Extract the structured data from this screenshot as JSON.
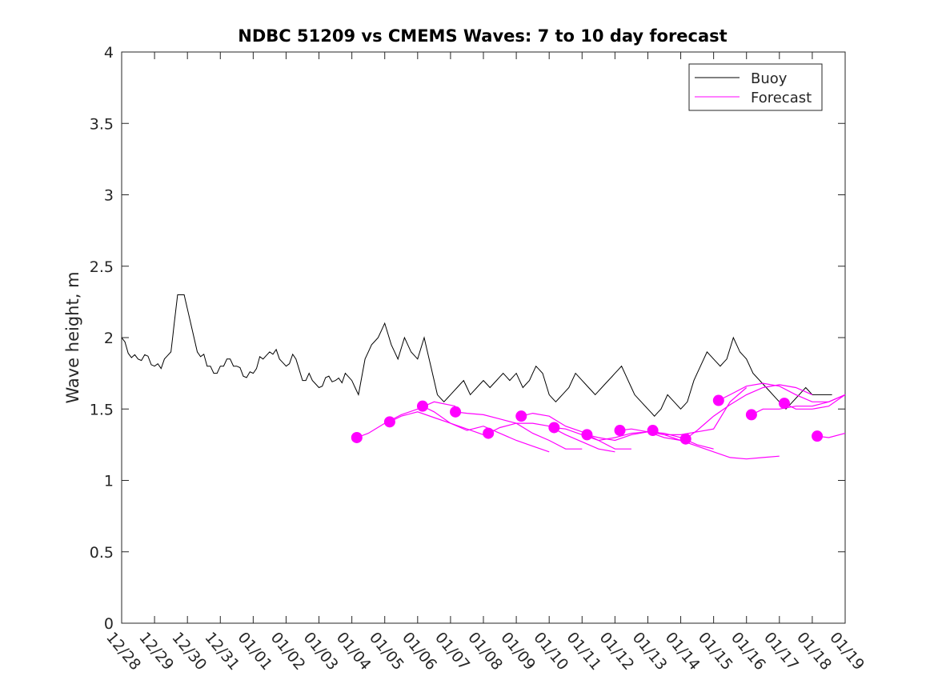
{
  "chart_data": {
    "type": "line",
    "title": "NDBC 51209 vs CMEMS Waves: 7 to 10 day forecast",
    "xlabel": "",
    "ylabel": "Wave height, m",
    "x_domain_days": [
      0,
      22
    ],
    "xlim": [
      "12/28",
      "01/19"
    ],
    "ylim": [
      0,
      4
    ],
    "y_ticks": [
      0,
      0.5,
      1,
      1.5,
      2,
      2.5,
      3,
      3.5,
      4
    ],
    "y_tick_labels": [
      "0",
      "0.5",
      "1",
      "1.5",
      "2",
      "2.5",
      "3",
      "3.5",
      "4"
    ],
    "x_tick_labels": [
      "12/28",
      "12/29",
      "12/30",
      "12/31",
      "01/01",
      "01/02",
      "01/03",
      "01/04",
      "01/05",
      "01/06",
      "01/07",
      "01/08",
      "01/09",
      "01/10",
      "01/11",
      "01/12",
      "01/13",
      "01/14",
      "01/15",
      "01/16",
      "01/17",
      "01/18",
      "01/19"
    ],
    "grid": false,
    "legend": {
      "position": "top-right",
      "entries": [
        {
          "label": "Buoy",
          "color": "#000000"
        },
        {
          "label": "Forecast",
          "color": "#ff00ff"
        }
      ]
    },
    "buoy_series": {
      "name": "Buoy",
      "color": "#000000",
      "x_days": [
        0,
        0.5,
        1,
        1.3,
        1.5,
        1.6,
        1.7,
        1.9,
        2.1,
        2.3,
        2.6,
        3,
        3.5,
        4,
        4.3,
        4.5,
        4.8,
        5,
        5.3,
        5.5,
        5.8,
        6,
        6.5,
        6.8,
        7,
        7.2,
        7.4,
        7.6,
        7.8,
        8,
        8.2,
        8.4,
        8.6,
        8.8,
        9,
        9.2,
        9.4,
        9.6,
        9.8,
        10,
        10.2,
        10.4,
        10.6,
        10.8,
        11,
        11.2,
        11.4,
        11.6,
        11.8,
        12,
        12.2,
        12.4,
        12.6,
        12.8,
        13,
        13.2,
        13.4,
        13.6,
        13.8,
        14,
        14.2,
        14.4,
        14.6,
        14.8,
        15,
        15.2,
        15.4,
        15.6,
        15.8,
        16,
        16.2,
        16.4,
        16.6,
        16.8,
        17,
        17.2,
        17.4,
        17.6,
        17.8,
        18,
        18.2,
        18.4,
        18.6,
        18.8,
        19,
        19.2,
        19.4,
        19.6,
        19.8,
        20,
        20.2,
        20.4,
        20.6,
        20.8,
        21,
        21.2,
        21.4,
        21.6
      ],
      "values": [
        2.0,
        1.85,
        1.8,
        1.85,
        1.9,
        2.1,
        2.3,
        2.3,
        2.1,
        1.9,
        1.8,
        1.8,
        1.8,
        1.75,
        1.85,
        1.9,
        1.85,
        1.8,
        1.85,
        1.7,
        1.7,
        1.65,
        1.7,
        1.75,
        1.7,
        1.6,
        1.85,
        1.95,
        2.0,
        2.1,
        1.95,
        1.85,
        2.0,
        1.9,
        1.85,
        2.0,
        1.8,
        1.6,
        1.55,
        1.6,
        1.65,
        1.7,
        1.6,
        1.65,
        1.7,
        1.65,
        1.7,
        1.75,
        1.7,
        1.75,
        1.65,
        1.7,
        1.8,
        1.75,
        1.6,
        1.55,
        1.6,
        1.65,
        1.75,
        1.7,
        1.65,
        1.6,
        1.65,
        1.7,
        1.75,
        1.8,
        1.7,
        1.6,
        1.55,
        1.5,
        1.45,
        1.5,
        1.6,
        1.55,
        1.5,
        1.55,
        1.7,
        1.8,
        1.9,
        1.85,
        1.8,
        1.85,
        2.0,
        1.9,
        1.85,
        1.75,
        1.7,
        1.65,
        1.6,
        1.55,
        1.5,
        1.55,
        1.6,
        1.65,
        1.6,
        1.6,
        1.6,
        1.6
      ]
    },
    "forecast_series": [
      {
        "name": "Forecast",
        "color": "#ff00ff",
        "x_days": [
          7.15,
          7.5,
          8.0,
          8.5,
          9.0,
          9.5,
          10.15
        ],
        "values": [
          1.3,
          1.33,
          1.4,
          1.46,
          1.5,
          1.55,
          1.52
        ],
        "start_marker": [
          7.15,
          1.3
        ]
      },
      {
        "name": "Forecast",
        "color": "#ff00ff",
        "x_days": [
          8.15,
          8.5,
          9.0,
          9.5,
          10.0,
          10.5,
          11.0,
          11.15
        ],
        "values": [
          1.41,
          1.45,
          1.48,
          1.44,
          1.4,
          1.36,
          1.32,
          1.3
        ],
        "start_marker": [
          8.15,
          1.41
        ]
      },
      {
        "name": "Forecast",
        "color": "#ff00ff",
        "x_days": [
          9.15,
          9.5,
          10.0,
          10.5,
          11.0,
          11.5,
          12.0,
          12.5,
          13.0
        ],
        "values": [
          1.52,
          1.48,
          1.4,
          1.35,
          1.38,
          1.33,
          1.28,
          1.24,
          1.2
        ],
        "start_marker": [
          9.15,
          1.52
        ]
      },
      {
        "name": "Forecast",
        "color": "#ff00ff",
        "x_days": [
          10.15,
          10.5,
          11.0,
          11.5,
          12.0,
          12.5,
          13.0,
          13.5,
          14.0
        ],
        "values": [
          1.48,
          1.47,
          1.46,
          1.43,
          1.4,
          1.33,
          1.28,
          1.22,
          1.22
        ],
        "start_marker": [
          10.15,
          1.48
        ]
      },
      {
        "name": "Forecast",
        "color": "#ff00ff",
        "x_days": [
          11.15,
          11.5,
          12.0,
          12.5,
          13.0,
          13.5,
          14.0,
          14.5,
          15.0
        ],
        "values": [
          1.33,
          1.37,
          1.4,
          1.4,
          1.38,
          1.32,
          1.27,
          1.22,
          1.2
        ],
        "start_marker": [
          11.15,
          1.33
        ]
      },
      {
        "name": "Forecast",
        "color": "#ff00ff",
        "x_days": [
          12.15,
          12.5,
          13.0,
          13.5,
          14.0,
          14.5,
          15.0,
          15.5
        ],
        "values": [
          1.45,
          1.47,
          1.45,
          1.38,
          1.34,
          1.28,
          1.22,
          1.22
        ],
        "start_marker": [
          12.15,
          1.45
        ]
      },
      {
        "name": "Forecast",
        "color": "#ff00ff",
        "x_days": [
          13.15,
          13.5,
          14.0,
          14.5,
          15.0,
          15.5,
          16.0,
          16.5,
          17.0
        ],
        "values": [
          1.37,
          1.36,
          1.32,
          1.28,
          1.3,
          1.33,
          1.34,
          1.3,
          1.28
        ],
        "start_marker": [
          13.15,
          1.37
        ]
      },
      {
        "name": "Forecast",
        "color": "#ff00ff",
        "x_days": [
          14.15,
          14.5,
          15.0,
          15.5,
          16.0,
          16.5,
          17.0,
          17.5,
          18.0
        ],
        "values": [
          1.32,
          1.3,
          1.28,
          1.32,
          1.34,
          1.33,
          1.3,
          1.25,
          1.22
        ],
        "start_marker": [
          14.15,
          1.32
        ]
      },
      {
        "name": "Forecast",
        "color": "#ff00ff",
        "x_days": [
          15.15,
          15.5,
          16.0,
          16.5,
          17.0,
          17.5,
          18.0,
          18.5,
          19.0
        ],
        "values": [
          1.35,
          1.36,
          1.34,
          1.32,
          1.32,
          1.34,
          1.36,
          1.55,
          1.65
        ],
        "start_marker": [
          15.15,
          1.35
        ]
      },
      {
        "name": "Forecast",
        "color": "#ff00ff",
        "x_days": [
          16.15,
          16.5,
          17.0,
          17.5,
          18.0,
          18.5,
          19.0,
          19.5,
          20.0
        ],
        "values": [
          1.35,
          1.32,
          1.28,
          1.24,
          1.2,
          1.16,
          1.15,
          1.16,
          1.17
        ],
        "start_marker": [
          16.15,
          1.35
        ]
      },
      {
        "name": "Forecast",
        "color": "#ff00ff",
        "x_days": [
          17.15,
          17.5,
          18.0,
          18.5,
          19.0,
          19.5,
          20.0,
          20.5,
          21.0
        ],
        "values": [
          1.29,
          1.35,
          1.45,
          1.53,
          1.6,
          1.65,
          1.67,
          1.65,
          1.6
        ],
        "start_marker": [
          17.15,
          1.29
        ]
      },
      {
        "name": "Forecast",
        "color": "#ff00ff",
        "x_days": [
          18.15,
          18.5,
          19.0,
          19.5,
          20.0,
          20.5,
          21.0,
          21.5,
          22.0
        ],
        "values": [
          1.56,
          1.6,
          1.66,
          1.68,
          1.66,
          1.6,
          1.55,
          1.55,
          1.6
        ],
        "start_marker": [
          18.15,
          1.56
        ]
      },
      {
        "name": "Forecast",
        "color": "#ff00ff",
        "x_days": [
          19.15,
          19.5,
          20.0,
          20.5,
          21.0,
          21.5,
          22.0
        ],
        "values": [
          1.46,
          1.5,
          1.5,
          1.52,
          1.52,
          1.55,
          1.6
        ],
        "start_marker": [
          19.15,
          1.46
        ]
      },
      {
        "name": "Forecast",
        "color": "#ff00ff",
        "x_days": [
          20.15,
          20.5,
          21.0,
          21.5,
          22.0
        ],
        "values": [
          1.54,
          1.5,
          1.5,
          1.52,
          1.6
        ],
        "start_marker": [
          20.15,
          1.54
        ]
      },
      {
        "name": "Forecast",
        "color": "#ff00ff",
        "x_days": [
          21.15,
          21.5,
          22.0
        ],
        "values": [
          1.31,
          1.3,
          1.33
        ],
        "start_marker": [
          21.15,
          1.31
        ]
      }
    ]
  }
}
